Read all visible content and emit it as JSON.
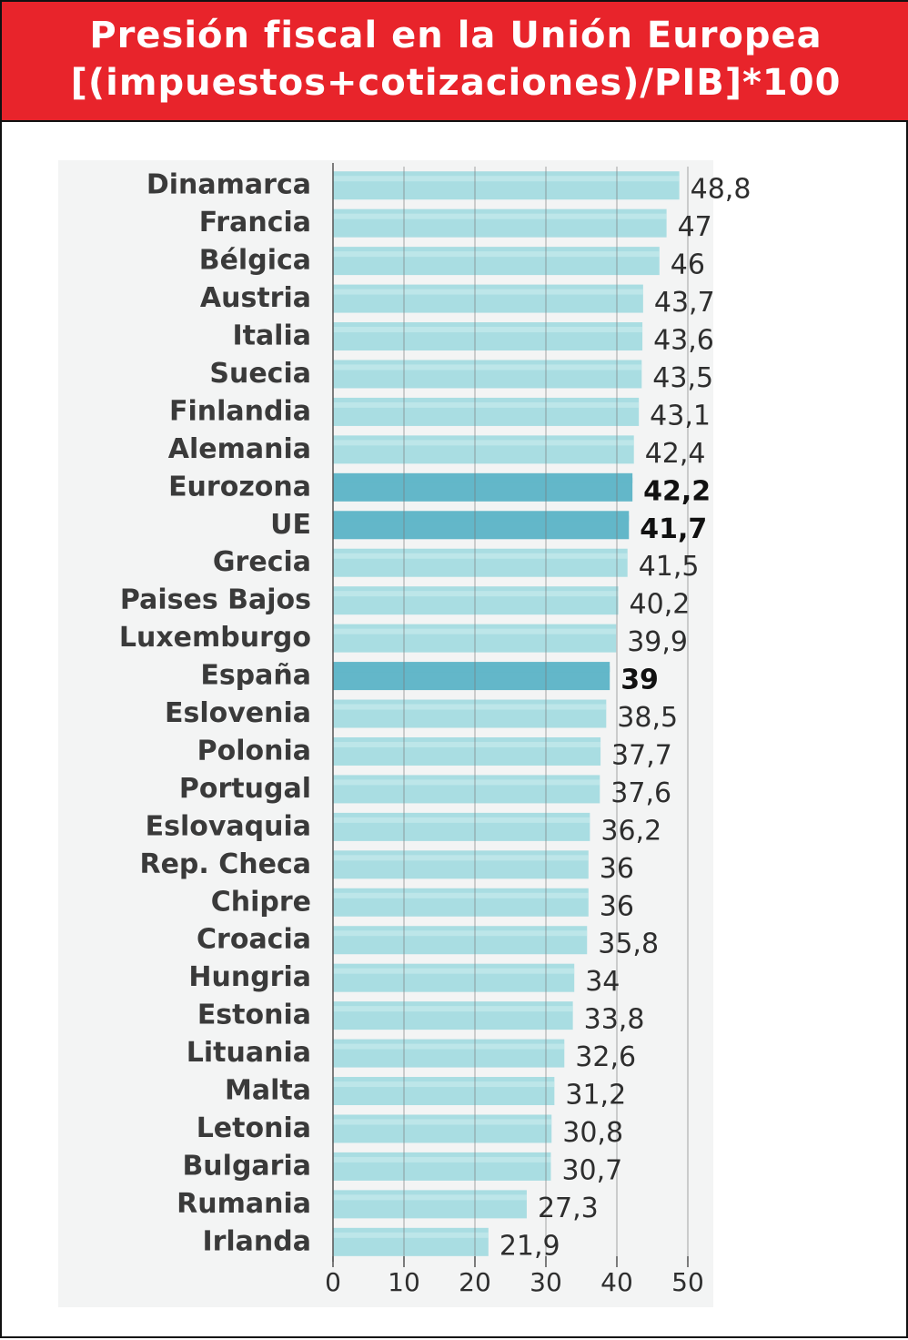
{
  "header": {
    "title_line1": "Presión fiscal en la Unión Europea",
    "title_line2": "[(impuestos+cotizaciones)/PIB]*100"
  },
  "colors": {
    "banner": "#e8242b",
    "bar": "#a9dde2",
    "bar_highlight": "#63b7c9",
    "bar_stripe": "#c6eaed"
  },
  "chart_data": {
    "type": "bar",
    "orientation": "horizontal",
    "title": "Presión fiscal en la Unión Europea [(impuestos+cotizaciones)/PIB]*100",
    "categories": [
      "Dinamarca",
      "Francia",
      "Bélgica",
      "Austria",
      "Italia",
      "Suecia",
      "Finlandia",
      "Alemania",
      "Eurozona",
      "UE",
      "Grecia",
      "Paises Bajos",
      "Luxemburgo",
      "España",
      "Eslovenia",
      "Polonia",
      "Portugal",
      "Eslovaquia",
      "Rep. Checa",
      "Chipre",
      "Croacia",
      "Hungria",
      "Estonia",
      "Lituania",
      "Malta",
      "Letonia",
      "Bulgaria",
      "Rumania",
      "Irlanda"
    ],
    "values": [
      48.8,
      47,
      46,
      43.7,
      43.6,
      43.5,
      43.1,
      42.4,
      42.2,
      41.7,
      41.5,
      40.2,
      39.9,
      39,
      38.5,
      37.7,
      37.6,
      36.2,
      36,
      36,
      35.8,
      34,
      33.8,
      32.6,
      31.2,
      30.8,
      30.7,
      27.3,
      21.9
    ],
    "value_labels": [
      "48,8",
      "47",
      "46",
      "43,7",
      "43,6",
      "43,5",
      "43,1",
      "42,4",
      "42,2",
      "41,7",
      "41,5",
      "40,2",
      "39,9",
      "39",
      "38,5",
      "37,7",
      "37,6",
      "36,2",
      "36",
      "36",
      "35,8",
      "34",
      "33,8",
      "32,6",
      "31,2",
      "30,8",
      "30,7",
      "27,3",
      "21,9"
    ],
    "highlighted": [
      "Eurozona",
      "UE",
      "España"
    ],
    "xlim": [
      0,
      50
    ],
    "xticks": [
      0,
      10,
      20,
      30,
      40,
      50
    ],
    "xtick_labels": [
      "0",
      "10",
      "20",
      "30",
      "40",
      "50"
    ],
    "grid": true,
    "xlabel": "",
    "ylabel": ""
  }
}
